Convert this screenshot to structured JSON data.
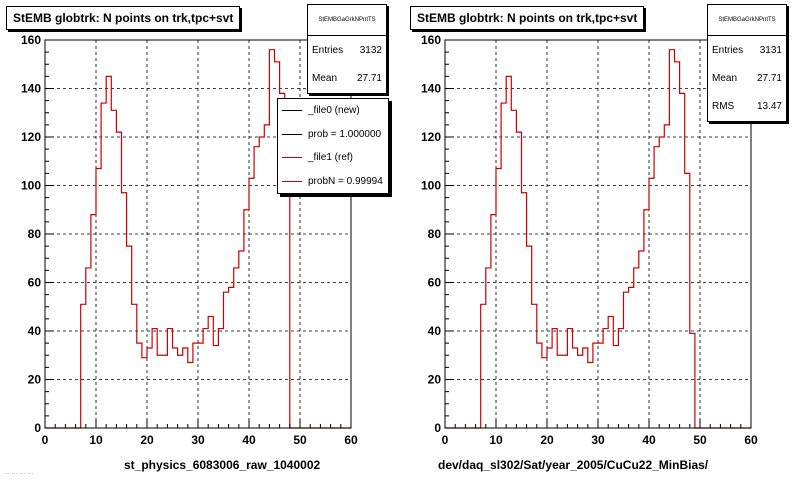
{
  "charts": [
    {
      "title": "StEMB globtrk: N points on trk,tpc+svt",
      "stats": {
        "header": "StEMBGaGrkNPntTS",
        "rows": [
          {
            "label": "Entries",
            "value": "3132"
          },
          {
            "label": "Mean",
            "value": "27.71"
          }
        ]
      },
      "legend": [
        {
          "label": "_file0 (new)",
          "color": "#000000"
        },
        {
          "label": "prob = 1.000000",
          "color": "#000000"
        },
        {
          "label": "_file1 (ref)",
          "color": "#cc0000"
        },
        {
          "label": "probN = 0.99994",
          "color": "#cc0000"
        }
      ],
      "xtitle": "st_physics_6083006_raw_1040002"
    },
    {
      "title": "StEMB globtrk: N points on trk,tpc+svt",
      "stats": {
        "header": "StEMBGaGrkNPntTS",
        "rows": [
          {
            "label": "Entries",
            "value": "3131"
          },
          {
            "label": "Mean",
            "value": "27.71"
          },
          {
            "label": "RMS",
            "value": "13.47"
          }
        ]
      },
      "legend": [],
      "xtitle": "dev/daq_sl302/Sat/year_2005/CuCu22_MinBias/"
    }
  ],
  "footer_text": "... ... ... ...",
  "chart_data": [
    {
      "type": "histogram",
      "title": "StEMB globtrk: N points on trk,tpc+svt",
      "xlim": [
        0,
        60
      ],
      "ylim": [
        0,
        160
      ],
      "xticks": [
        0,
        10,
        20,
        30,
        40,
        50,
        60
      ],
      "yticks": [
        0,
        20,
        40,
        60,
        80,
        100,
        120,
        140,
        160
      ],
      "grid": true,
      "bin_width": 1,
      "series": [
        {
          "color": "#cc0000",
          "x": [
            0,
            1,
            2,
            3,
            4,
            5,
            6,
            7,
            8,
            9,
            10,
            11,
            12,
            13,
            14,
            15,
            16,
            17,
            18,
            19,
            20,
            21,
            22,
            23,
            24,
            25,
            26,
            27,
            28,
            29,
            30,
            31,
            32,
            33,
            34,
            35,
            36,
            37,
            38,
            39,
            40,
            41,
            42,
            43,
            44,
            45,
            46,
            47,
            48,
            49,
            50,
            51,
            52,
            53,
            54,
            55,
            56,
            57,
            58,
            59
          ],
          "values": [
            0,
            0,
            0,
            0,
            0,
            0,
            0,
            51,
            66,
            88,
            107,
            134,
            145,
            131,
            122,
            97,
            75,
            51,
            35,
            29,
            33,
            41,
            30,
            30,
            41,
            33,
            30,
            33,
            27,
            35,
            35,
            41,
            46,
            34,
            41,
            56,
            58,
            66,
            73,
            90,
            103,
            116,
            120,
            125,
            156,
            151,
            138,
            105,
            0,
            0,
            0,
            0,
            0,
            0,
            0,
            0,
            0,
            0,
            0,
            0
          ]
        }
      ]
    },
    {
      "type": "histogram",
      "title": "StEMB globtrk: N points on trk,tpc+svt",
      "xlim": [
        0,
        60
      ],
      "ylim": [
        0,
        160
      ],
      "xticks": [
        0,
        10,
        20,
        30,
        40,
        50,
        60
      ],
      "yticks": [
        0,
        20,
        40,
        60,
        80,
        100,
        120,
        140,
        160
      ],
      "grid": true,
      "bin_width": 1,
      "series": [
        {
          "color": "#cc0000",
          "x": [
            0,
            1,
            2,
            3,
            4,
            5,
            6,
            7,
            8,
            9,
            10,
            11,
            12,
            13,
            14,
            15,
            16,
            17,
            18,
            19,
            20,
            21,
            22,
            23,
            24,
            25,
            26,
            27,
            28,
            29,
            30,
            31,
            32,
            33,
            34,
            35,
            36,
            37,
            38,
            39,
            40,
            41,
            42,
            43,
            44,
            45,
            46,
            47,
            48,
            49,
            50,
            51,
            52,
            53,
            54,
            55,
            56,
            57,
            58,
            59
          ],
          "values": [
            0,
            0,
            0,
            0,
            0,
            0,
            0,
            51,
            66,
            88,
            107,
            134,
            145,
            131,
            122,
            97,
            75,
            51,
            35,
            29,
            33,
            41,
            30,
            30,
            41,
            33,
            30,
            33,
            27,
            35,
            35,
            41,
            46,
            34,
            41,
            56,
            58,
            66,
            73,
            90,
            103,
            116,
            120,
            125,
            156,
            151,
            138,
            105,
            39,
            0,
            0,
            0,
            0,
            0,
            0,
            0,
            0,
            0,
            0,
            0
          ]
        }
      ]
    }
  ]
}
